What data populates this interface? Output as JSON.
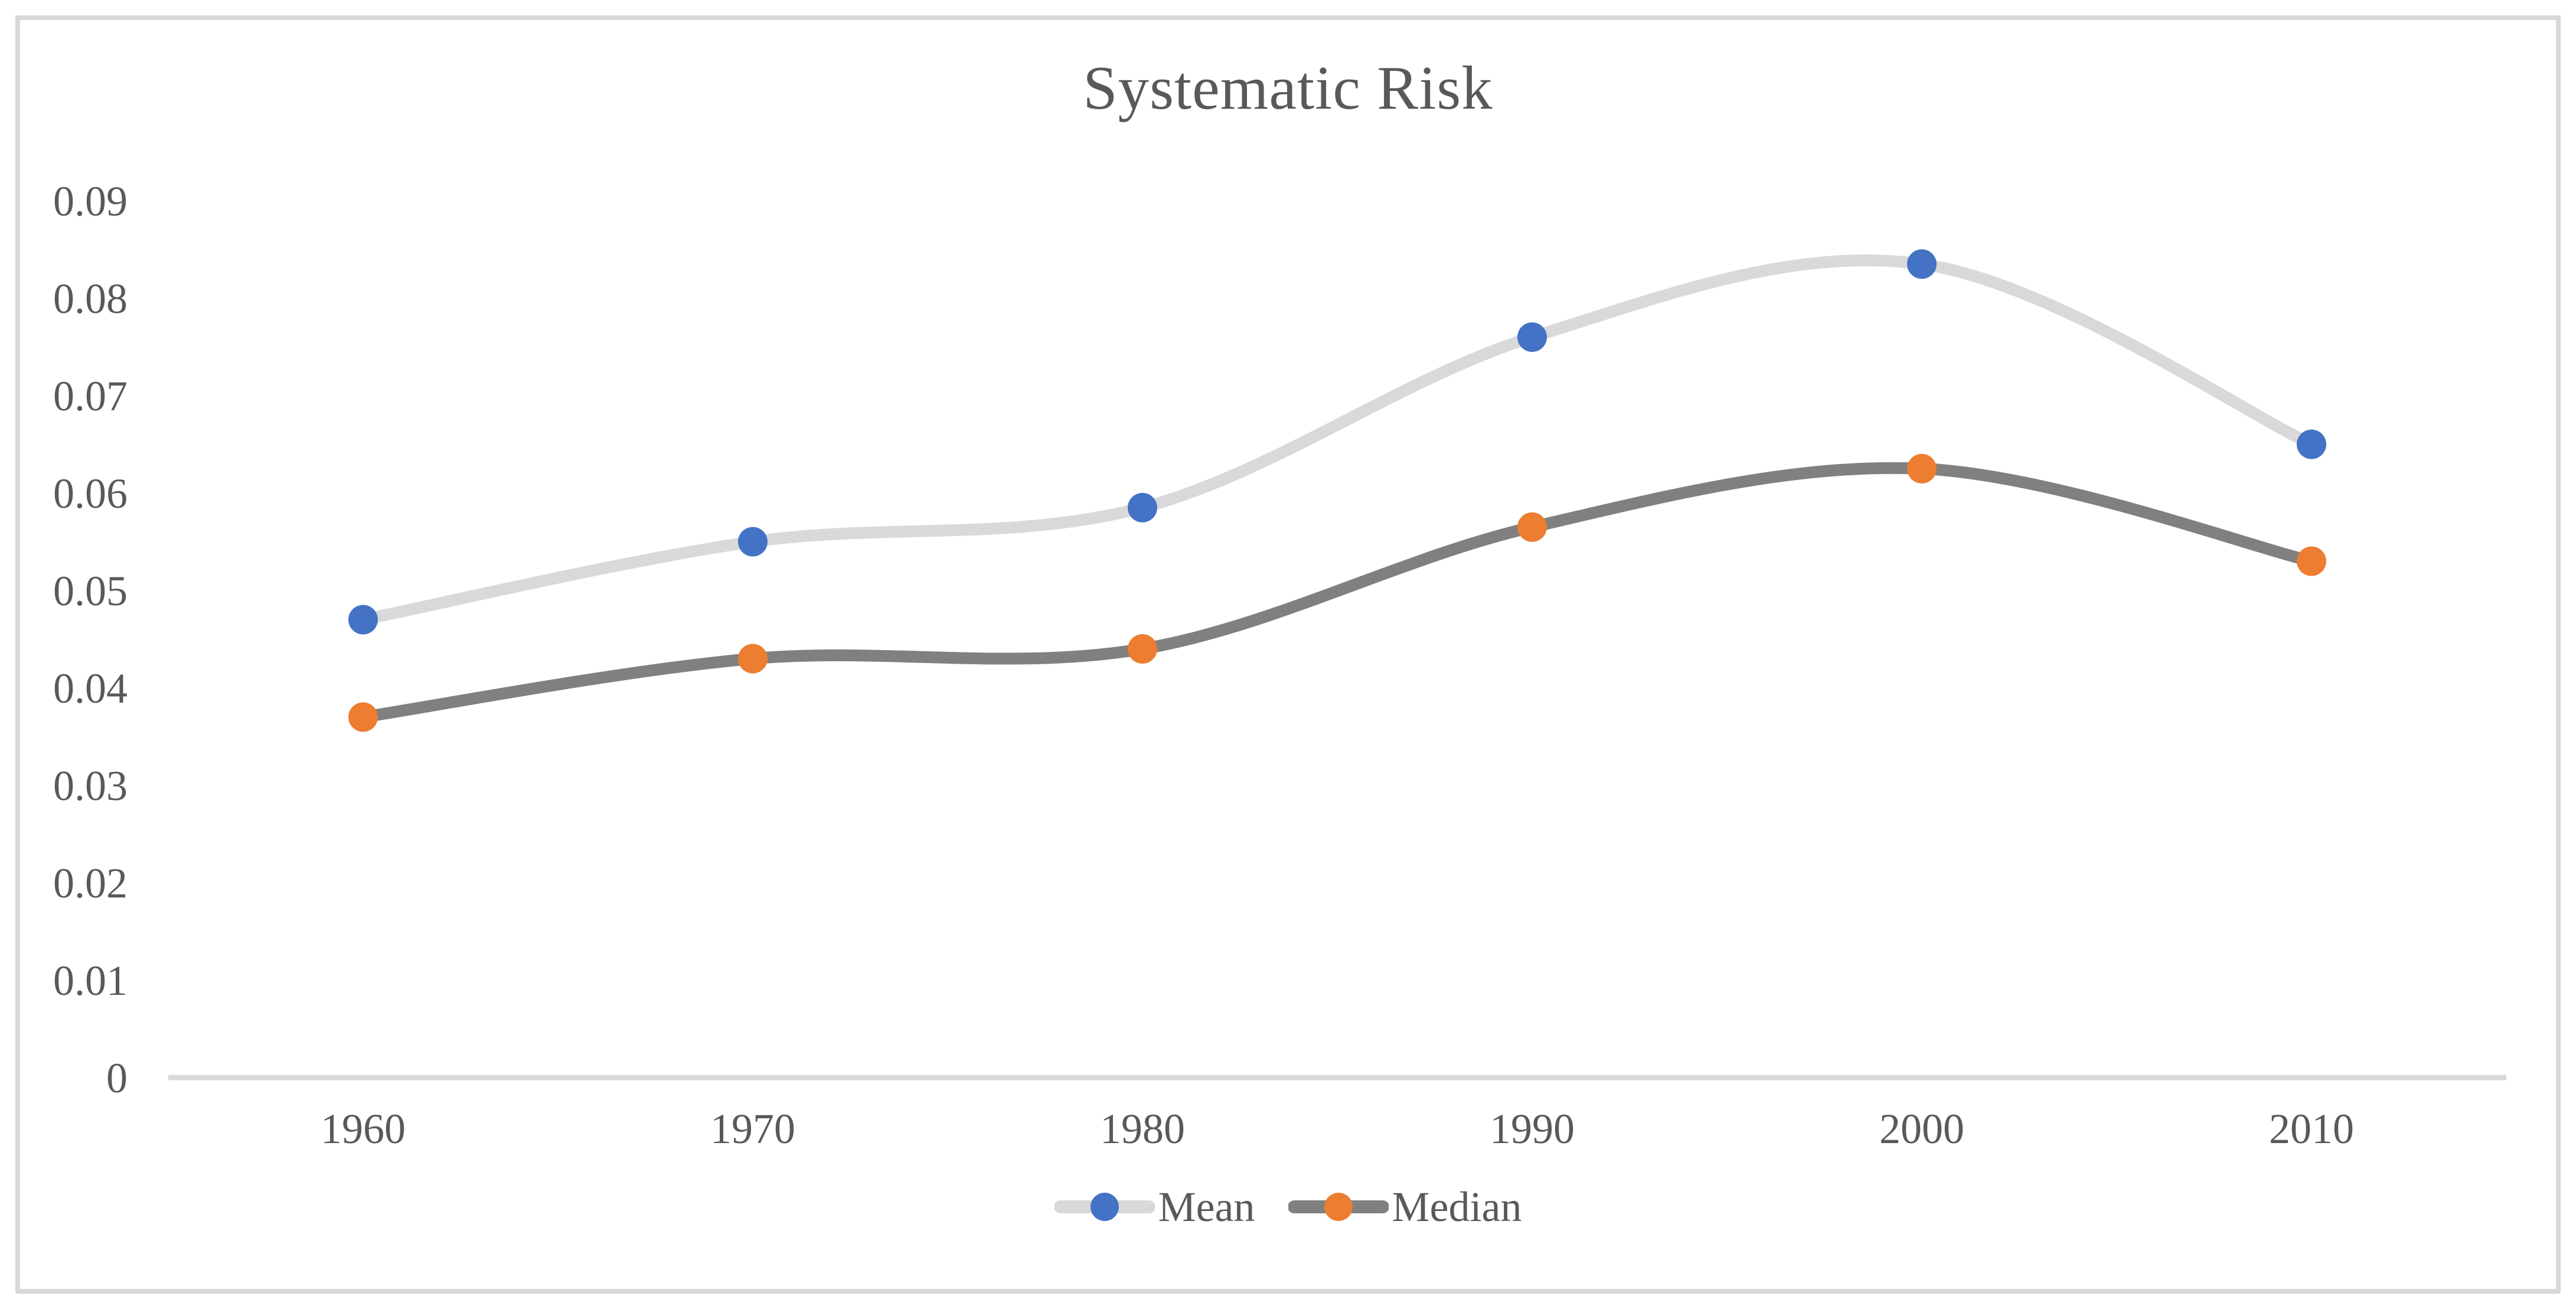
{
  "chart_data": {
    "type": "line",
    "title": "Systematic Risk",
    "smooth": true,
    "grid": false,
    "categories": [
      "1960",
      "1970",
      "1980",
      "1990",
      "2000",
      "2010"
    ],
    "series": [
      {
        "name": "Mean",
        "values": [
          0.047,
          0.055,
          0.0585,
          0.076,
          0.0835,
          0.065
        ],
        "line_color": "#D9D9D9",
        "marker_color": "#4472C4",
        "marker_shape": "circle"
      },
      {
        "name": "Median",
        "values": [
          0.037,
          0.043,
          0.044,
          0.0565,
          0.0625,
          0.053
        ],
        "line_color": "#808080",
        "marker_color": "#ED7D31",
        "marker_shape": "circle"
      }
    ],
    "x_axis": {
      "tick_labels": [
        "1960",
        "1970",
        "1980",
        "1990",
        "2000",
        "2010"
      ]
    },
    "y_axis": {
      "min": 0,
      "max": 0.09,
      "tick_step": 0.01,
      "tick_labels": [
        "0.09",
        "0.08",
        "0.07",
        "0.06",
        "0.05",
        "0.04",
        "0.03",
        "0.02",
        "0.01",
        "0"
      ]
    },
    "legend": {
      "position": "bottom",
      "entries": [
        "Mean",
        "Median"
      ]
    }
  },
  "styles": {
    "background": "#FFFFFF",
    "text_color": "#595959",
    "axis_line_color": "#D9D9D9",
    "frame_border_color": "#D9D9D9"
  }
}
